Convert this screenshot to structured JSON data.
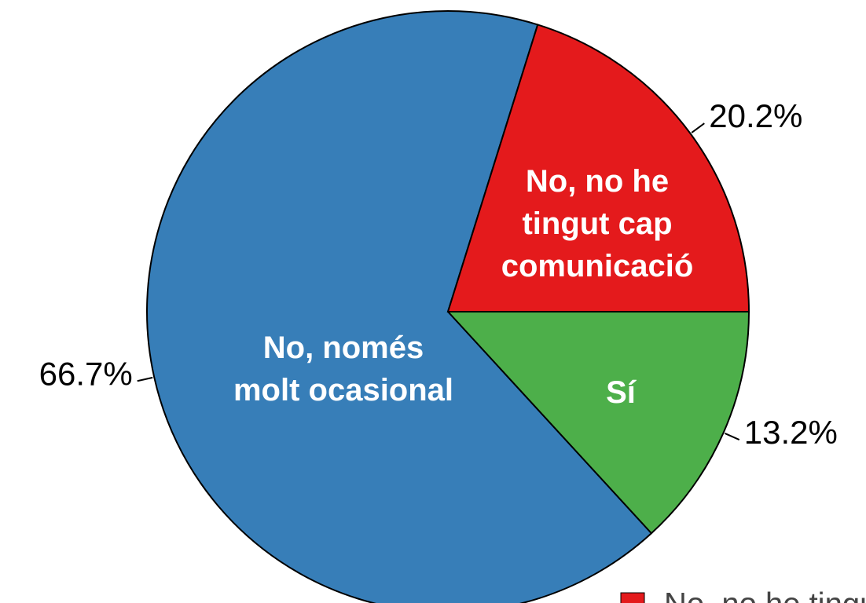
{
  "chart_data": {
    "type": "pie",
    "categories": [
      "Sí",
      "No, només\nmolt ocasional",
      "No, no he\ntingut cap\ncomunicació"
    ],
    "values": [
      13.2,
      66.7,
      20.2
    ],
    "value_labels": [
      "13.2%",
      "66.7%",
      "20.2%"
    ],
    "colors": [
      "#4daf4a",
      "#377eb8",
      "#e41a1c"
    ],
    "start_angle": 0,
    "direction": "clockwise"
  }
}
